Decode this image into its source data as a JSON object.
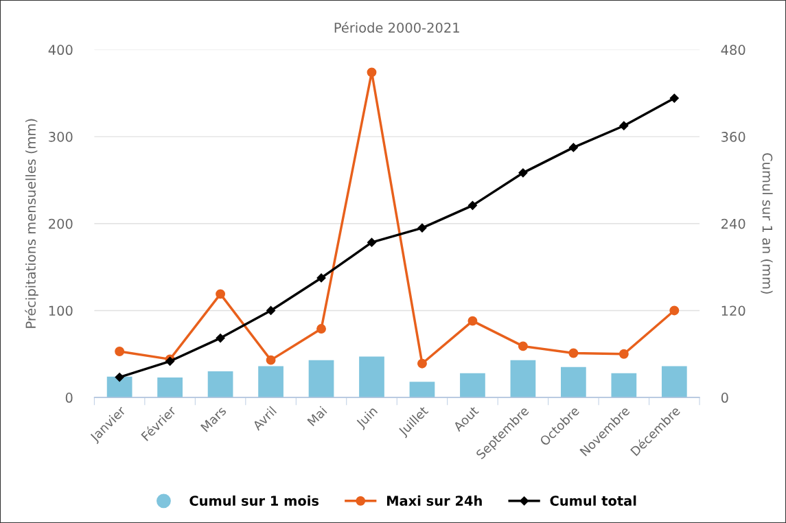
{
  "chart_data": {
    "type": "bar",
    "title": "Période 2000-2021",
    "categories": [
      "Janvier",
      "Février",
      "Mars",
      "Avril",
      "Mai",
      "Juin",
      "Juillet",
      "Aout",
      "Septembre",
      "Octobre",
      "Novembre",
      "Décembre"
    ],
    "series": [
      {
        "name": "Cumul sur 1 mois",
        "color": "#7fc4dd",
        "values": [
          24,
          23,
          30,
          36,
          43,
          47,
          18,
          28,
          43,
          35,
          28,
          36
        ]
      },
      {
        "name": "Maxi sur 24h",
        "type": "line",
        "marker": "circle",
        "color": "#e8601c",
        "values": [
          53,
          44,
          119,
          43,
          79,
          374,
          39,
          88,
          59,
          51,
          50,
          100
        ]
      },
      {
        "name": "Cumul total",
        "type": "line",
        "marker": "diamond",
        "axis": "y2",
        "color": "#000000",
        "values": [
          28,
          50,
          82,
          120,
          165,
          214,
          234,
          265,
          310,
          345,
          375,
          413
        ]
      }
    ],
    "ylabel": "Précipitations mensuelles (mm)",
    "y2label": "Cumul sur 1 an (mm)",
    "ylim": [
      0,
      400
    ],
    "yticks": [
      0,
      100,
      200,
      300,
      400
    ],
    "y2lim": [
      0,
      480
    ],
    "y2ticks": [
      0,
      120,
      240,
      360,
      480
    ],
    "grid": "y",
    "legend": "bottom",
    "line_style": "solid"
  }
}
